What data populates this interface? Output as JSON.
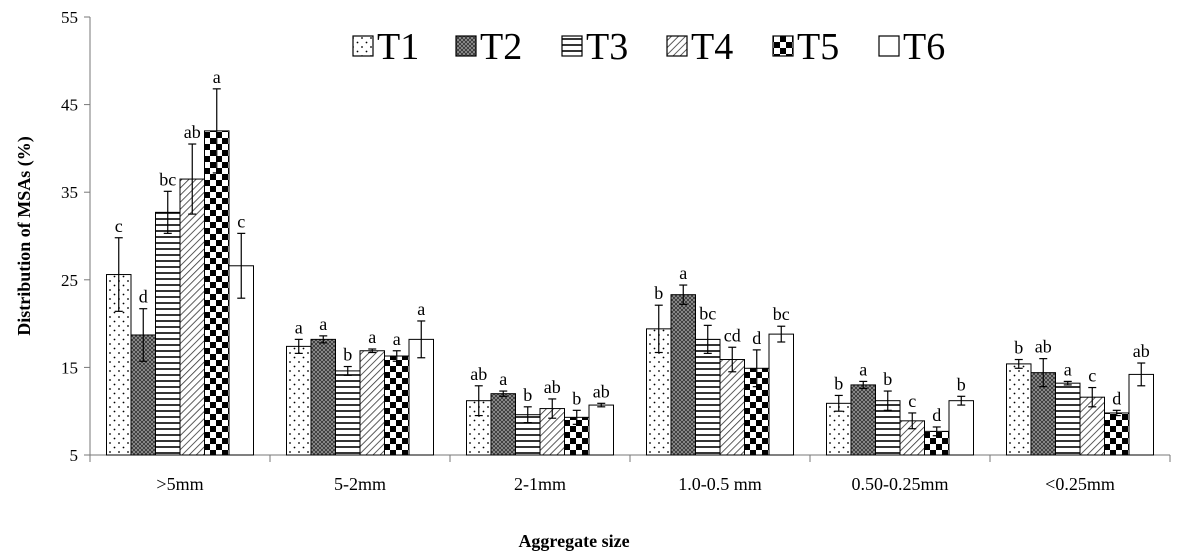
{
  "chart_data": {
    "type": "bar",
    "xlabel": "Aggregate size",
    "ylabel": "Distribution of  MSAs (%)",
    "ylim": [
      5,
      55
    ],
    "yticks": [
      5,
      15,
      25,
      35,
      45,
      55
    ],
    "legend_position": "top",
    "grid": false,
    "categories": [
      ">5mm",
      "5-2mm",
      "2-1mm",
      "1.0-0.5 mm",
      "0.50-0.25mm",
      "<0.25mm"
    ],
    "series": [
      {
        "name": "T1",
        "pattern": "dots",
        "values": [
          25.6,
          17.4,
          11.2,
          19.4,
          10.9,
          15.4
        ],
        "errors": [
          4.2,
          0.8,
          1.7,
          2.7,
          0.9,
          0.5
        ],
        "letters": [
          "c",
          "a",
          "ab",
          "b",
          "b",
          "b"
        ]
      },
      {
        "name": "T2",
        "pattern": "crosshatch",
        "values": [
          18.7,
          18.2,
          12.0,
          23.3,
          13.0,
          14.4
        ],
        "errors": [
          3.0,
          0.4,
          0.3,
          1.1,
          0.4,
          1.6
        ],
        "letters": [
          "d",
          "a",
          "a",
          "a",
          "a",
          "ab"
        ]
      },
      {
        "name": "T3",
        "pattern": "horizontal",
        "values": [
          32.7,
          14.6,
          9.6,
          18.2,
          11.2,
          13.2
        ],
        "errors": [
          2.4,
          0.5,
          0.9,
          1.6,
          1.1,
          0.2
        ],
        "letters": [
          "bc",
          "b",
          "b",
          "bc",
          "b",
          "a"
        ]
      },
      {
        "name": "T4",
        "pattern": "diagonal",
        "values": [
          36.5,
          16.9,
          10.3,
          15.9,
          8.9,
          11.6
        ],
        "errors": [
          4.0,
          0.2,
          1.1,
          1.4,
          0.9,
          1.1
        ],
        "letters": [
          "ab",
          "a",
          "ab",
          "cd",
          "c",
          "c"
        ]
      },
      {
        "name": "T5",
        "pattern": "checker",
        "values": [
          42.0,
          16.3,
          9.3,
          14.9,
          7.7,
          9.8
        ],
        "errors": [
          4.8,
          0.6,
          0.8,
          2.1,
          0.5,
          0.3
        ],
        "letters": [
          "a",
          "a",
          "b",
          "d",
          "d",
          "d"
        ]
      },
      {
        "name": "T6",
        "pattern": "white",
        "values": [
          26.6,
          18.2,
          10.7,
          18.8,
          11.2,
          14.2
        ],
        "errors": [
          3.7,
          2.1,
          0.2,
          0.9,
          0.5,
          1.3
        ],
        "letters": [
          "c",
          "a",
          "ab",
          "bc",
          "b",
          "ab"
        ]
      }
    ]
  }
}
